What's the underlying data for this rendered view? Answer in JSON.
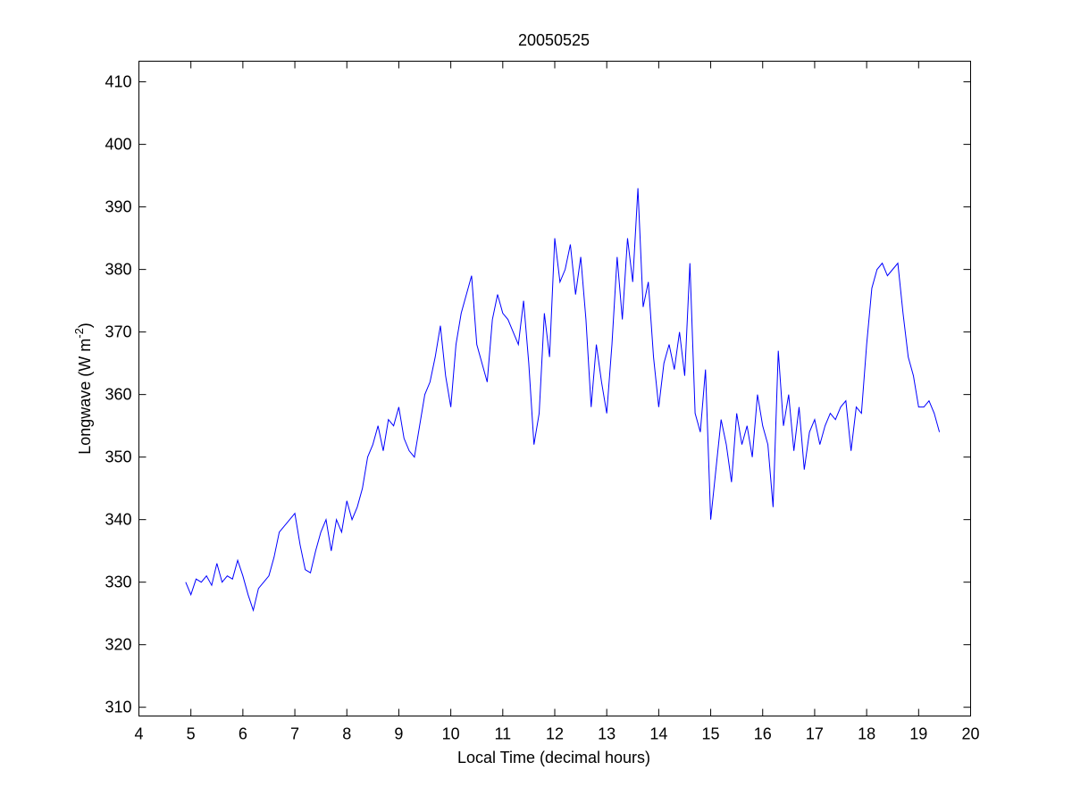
{
  "chart_data": {
    "type": "line",
    "title": "20050525",
    "xlabel": "Local Time (decimal hours)",
    "ylabel": {
      "text": "Longwave (W m",
      "superscript": "-2",
      "suffix": ")"
    },
    "xlim": [
      4,
      20
    ],
    "xticks": [
      4,
      5,
      6,
      7,
      8,
      9,
      10,
      11,
      12,
      13,
      14,
      15,
      16,
      17,
      18,
      19,
      20
    ],
    "ylim": [
      308.6,
      413.3
    ],
    "yticks": [
      310,
      320,
      330,
      340,
      350,
      360,
      370,
      380,
      390,
      400,
      410
    ],
    "grid": false,
    "x": [
      4.9,
      5.0,
      5.1,
      5.2,
      5.3,
      5.4,
      5.5,
      5.6,
      5.7,
      5.8,
      5.9,
      6.0,
      6.1,
      6.2,
      6.3,
      6.4,
      6.5,
      6.6,
      6.7,
      6.8,
      6.9,
      7.0,
      7.1,
      7.2,
      7.3,
      7.4,
      7.5,
      7.6,
      7.7,
      7.8,
      7.9,
      8.0,
      8.1,
      8.2,
      8.3,
      8.4,
      8.5,
      8.6,
      8.7,
      8.8,
      8.9,
      9.0,
      9.1,
      9.2,
      9.3,
      9.4,
      9.5,
      9.6,
      9.7,
      9.8,
      9.9,
      10.0,
      10.1,
      10.2,
      10.3,
      10.4,
      10.5,
      10.6,
      10.7,
      10.8,
      10.9,
      11.0,
      11.1,
      11.2,
      11.3,
      11.4,
      11.5,
      11.6,
      11.7,
      11.8,
      11.9,
      12.0,
      12.1,
      12.2,
      12.3,
      12.4,
      12.5,
      12.6,
      12.7,
      12.8,
      12.9,
      13.0,
      13.1,
      13.2,
      13.3,
      13.4,
      13.5,
      13.6,
      13.7,
      13.8,
      13.9,
      14.0,
      14.1,
      14.2,
      14.3,
      14.4,
      14.5,
      14.6,
      14.7,
      14.8,
      14.9,
      15.0,
      15.1,
      15.2,
      15.3,
      15.4,
      15.5,
      15.6,
      15.7,
      15.8,
      15.9,
      16.0,
      16.1,
      16.2,
      16.3,
      16.4,
      16.5,
      16.6,
      16.7,
      16.8,
      16.9,
      17.0,
      17.1,
      17.2,
      17.3,
      17.4,
      17.5,
      17.6,
      17.7,
      17.8,
      17.9,
      18.0,
      18.1,
      18.2,
      18.3,
      18.4,
      18.5,
      18.6,
      18.7,
      18.8,
      18.9,
      19.0,
      19.1,
      19.2,
      19.3,
      19.4
    ],
    "series": [
      {
        "color": "#0000ff",
        "values": [
          330,
          328,
          330.5,
          330,
          331,
          329.5,
          333,
          330,
          331,
          330.5,
          333.5,
          331,
          328,
          325.5,
          329,
          330,
          331,
          334,
          338,
          339,
          340,
          341,
          336,
          332,
          331.5,
          335,
          338,
          340,
          335,
          340,
          338,
          343,
          340,
          342,
          345,
          350,
          352,
          355,
          351,
          356,
          355,
          358,
          353,
          351,
          350,
          355,
          360,
          362,
          366,
          371,
          363,
          358,
          368,
          373,
          376,
          379,
          368,
          365,
          362,
          372,
          376,
          373,
          372,
          370,
          368,
          375,
          365,
          352,
          357,
          373,
          366,
          385,
          378,
          380,
          384,
          376,
          382,
          372,
          358,
          368,
          362,
          357,
          368,
          382,
          372,
          385,
          378,
          393,
          374,
          378,
          366,
          358,
          365,
          368,
          364,
          370,
          363,
          381,
          357,
          354,
          364,
          340,
          348,
          356,
          352,
          346,
          357,
          352,
          355,
          350,
          360,
          355,
          352,
          342,
          367,
          355,
          360,
          351,
          358,
          348,
          354,
          356,
          352,
          355,
          357,
          356,
          358,
          359,
          351,
          358,
          357,
          368,
          377,
          380,
          381,
          379,
          380,
          381,
          373,
          366,
          363,
          358,
          358,
          359,
          357,
          354
        ]
      }
    ]
  }
}
